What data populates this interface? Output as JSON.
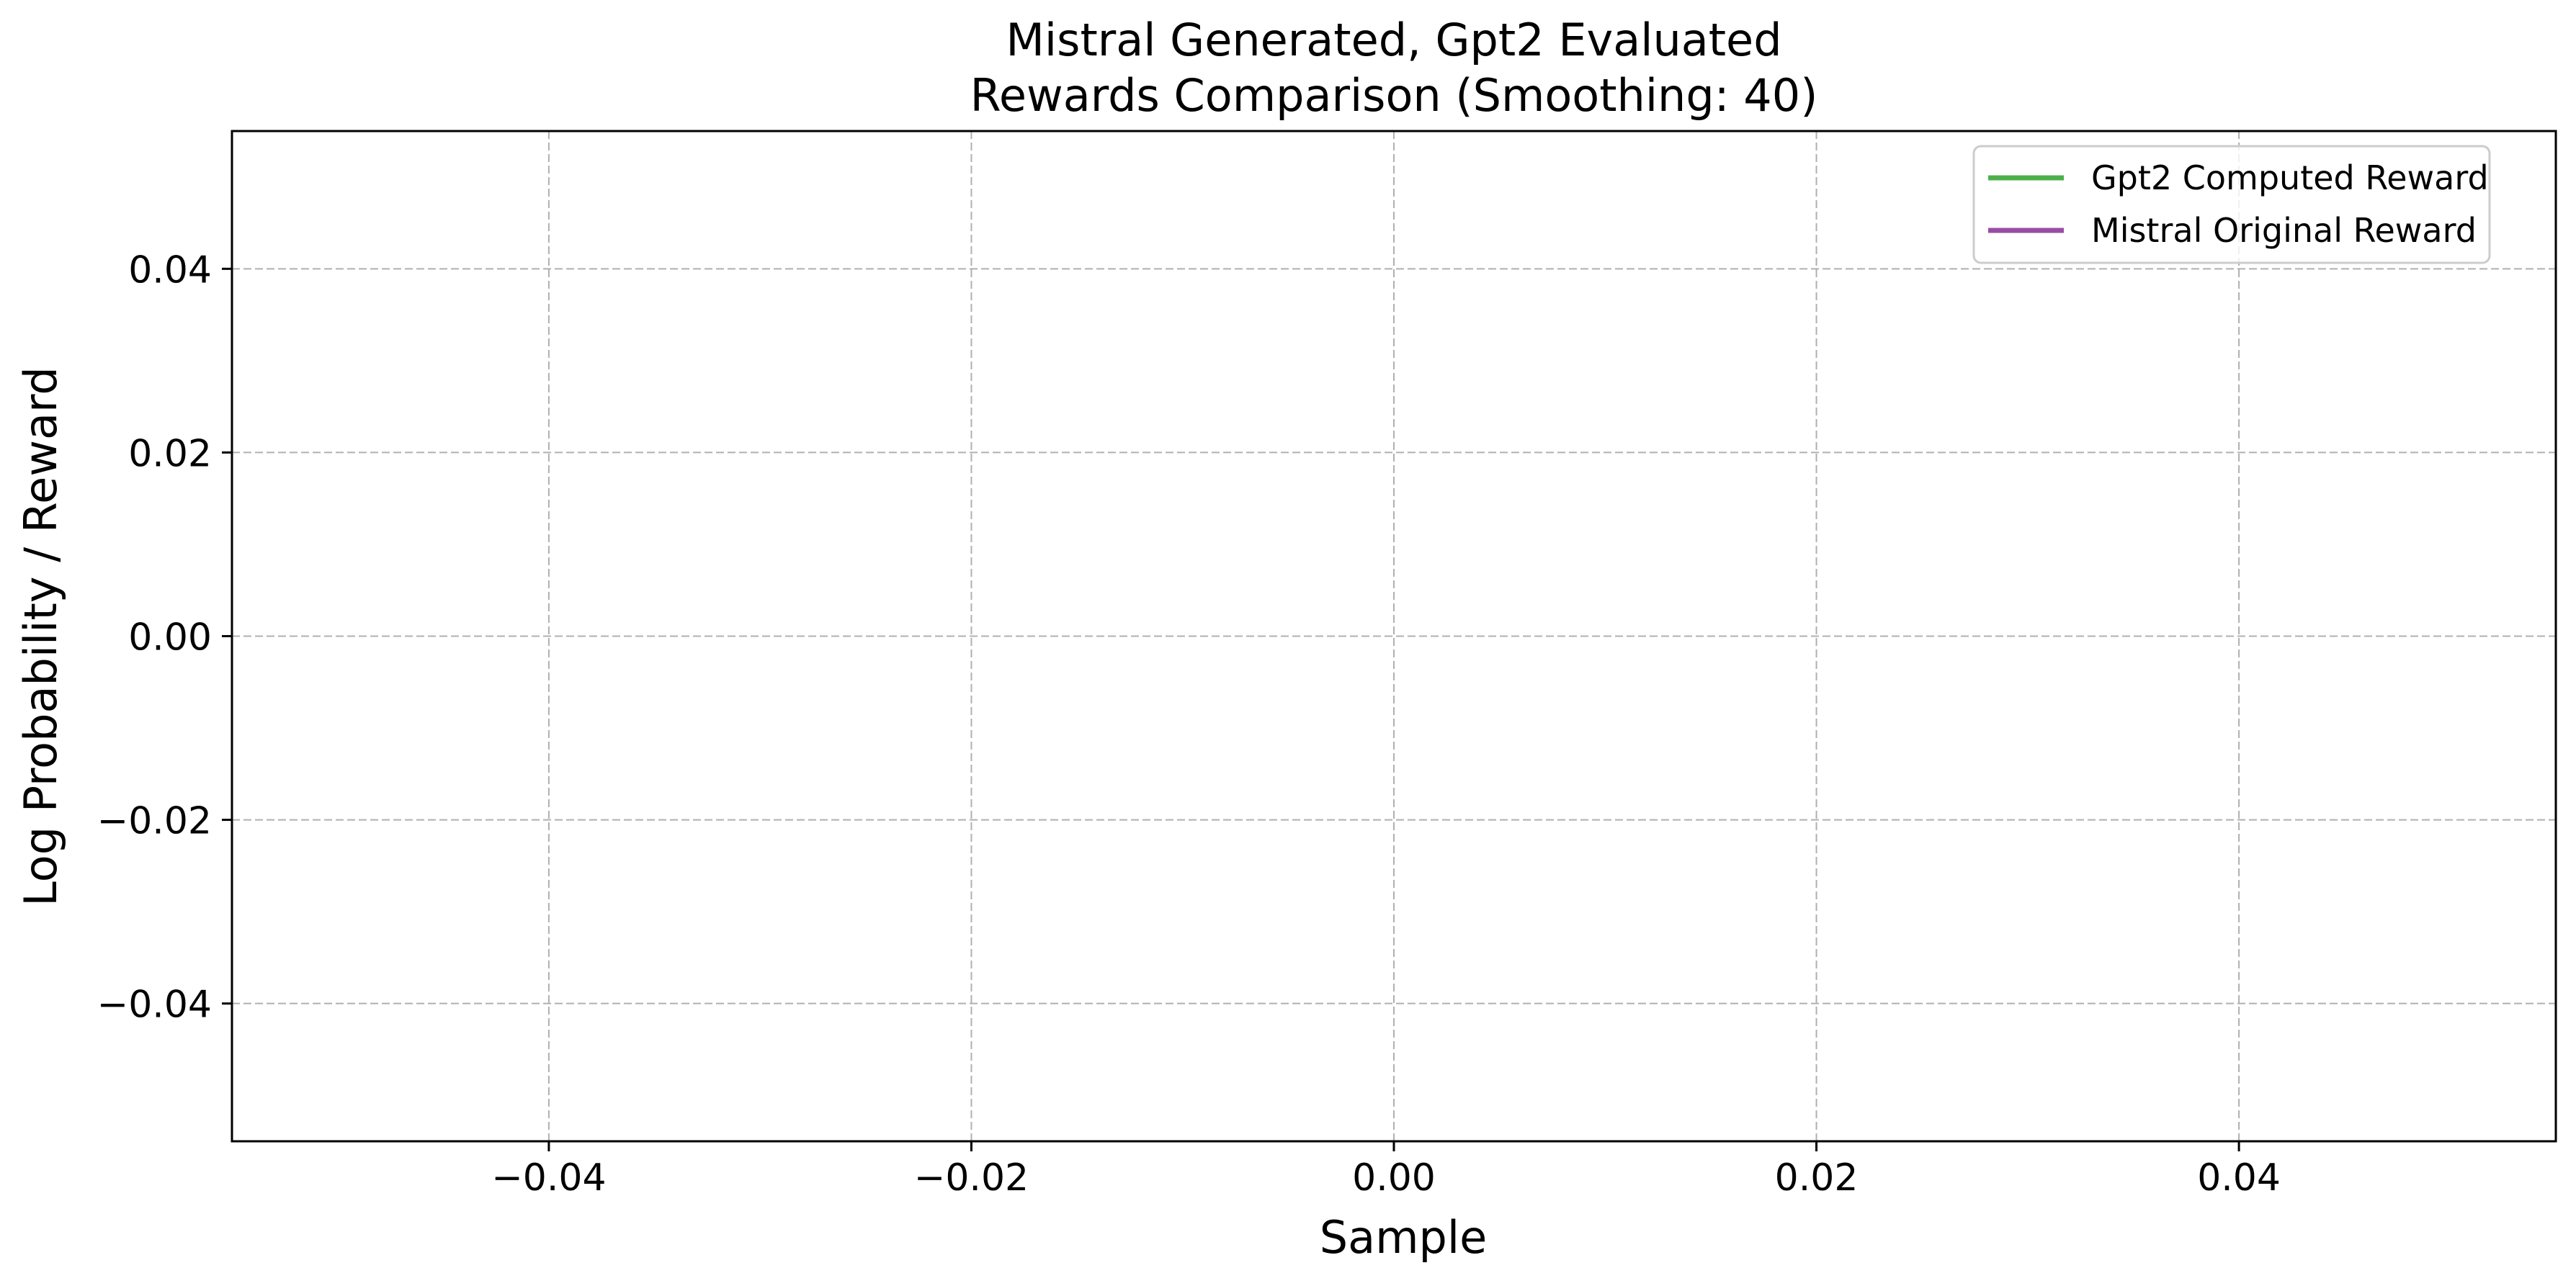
{
  "chart_data": {
    "type": "line",
    "title": [
      "Mistral Generated, Gpt2 Evaluated",
      "Rewards Comparison (Smoothing: 40)"
    ],
    "xlabel": "Sample",
    "ylabel": "Log Probability / Reward",
    "xlim": [
      -0.055,
      0.055
    ],
    "ylim": [
      -0.055,
      0.055
    ],
    "x_ticks": [
      -0.04,
      -0.02,
      0.0,
      0.02,
      0.04
    ],
    "x_tick_labels": [
      "−0.04",
      "−0.02",
      "0.00",
      "0.02",
      "0.04"
    ],
    "y_ticks": [
      0.04,
      0.02,
      0.0,
      -0.02,
      -0.04
    ],
    "y_tick_labels": [
      "0.04",
      "0.02",
      "0.00",
      "−0.02",
      "−0.04"
    ],
    "grid": true,
    "legend_position": "top-right",
    "series": [
      {
        "name": "Gpt2 Computed Reward",
        "color": "#4daf4a",
        "x": [],
        "y": []
      },
      {
        "name": "Mistral Original Reward",
        "color": "#984ea3",
        "x": [],
        "y": []
      }
    ]
  }
}
